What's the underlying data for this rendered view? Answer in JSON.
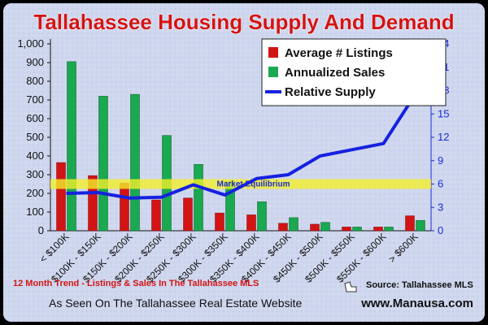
{
  "chart_data": {
    "type": "bar",
    "title": "Tallahassee Housing Supply And Demand",
    "categories": [
      "< $100K",
      "$100K - $150K",
      "$150K - $200K",
      "$200K - $250K",
      "$250K - $300K",
      "$300K - $350K",
      "$350K - $400K",
      "$400K - $450K",
      "$450K - $500K",
      "$500K - $550K",
      "$550K - $600K",
      "> $600K"
    ],
    "series": [
      {
        "name": "Average # Listings",
        "axis": "left",
        "color": "#d21414",
        "values": [
          365,
          295,
          255,
          165,
          175,
          95,
          85,
          40,
          35,
          20,
          20,
          80
        ]
      },
      {
        "name": "Annualized Sales",
        "axis": "left",
        "color": "#1aa850",
        "values": [
          905,
          720,
          730,
          510,
          355,
          265,
          155,
          70,
          45,
          20,
          20,
          55
        ]
      },
      {
        "name": "Relative Supply",
        "axis": "right",
        "type": "line",
        "color": "#1522e0",
        "values": [
          4.8,
          4.9,
          4.2,
          4.3,
          5.9,
          4.6,
          6.7,
          7.2,
          9.6,
          10.4,
          11.2,
          17.5
        ]
      }
    ],
    "ylim_left": [
      0,
      1000
    ],
    "yticks_left": [
      "0",
      "100",
      "200",
      "300",
      "400",
      "500",
      "600",
      "700",
      "800",
      "900",
      "1,000"
    ],
    "ylim_right": [
      0,
      24
    ],
    "yticks_right": [
      "0",
      "3",
      "6",
      "9",
      "12",
      "15",
      "18",
      "21",
      "24"
    ],
    "equilibrium": {
      "label": "Market Equilibrium",
      "value": 6
    },
    "legend_position": "top-right"
  },
  "notes": {
    "subtitle": "12 Month Trend - Listings & Sales In The Tallahassee MLS",
    "source": "Source: Tallahassee MLS"
  },
  "footer": {
    "left": "As Seen On The Tallahassee Real Estate Website",
    "right": "www.Manausa.com"
  }
}
